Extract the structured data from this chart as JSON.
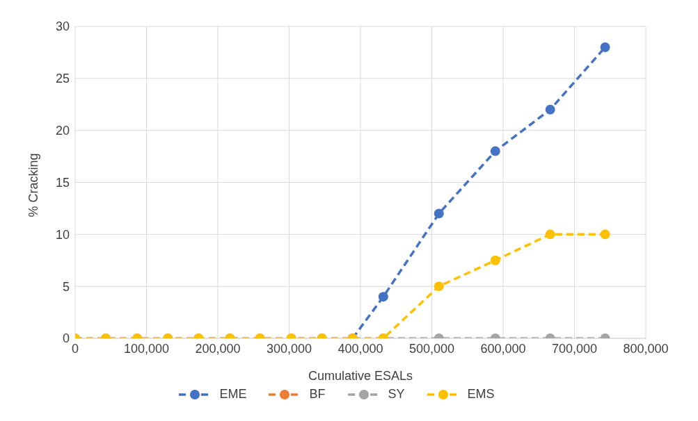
{
  "chart_data": {
    "type": "line",
    "xlabel": "Cumulative ESALs",
    "ylabel": "% Cracking",
    "x": [
      0,
      43000,
      87000,
      130000,
      173000,
      217000,
      259000,
      303000,
      346000,
      389000,
      432000,
      510000,
      589000,
      666000,
      743000
    ],
    "series": [
      {
        "name": "EME",
        "color": "#4472c4",
        "values": [
          null,
          null,
          null,
          null,
          null,
          null,
          null,
          null,
          null,
          0,
          4,
          12,
          18,
          22,
          28
        ]
      },
      {
        "name": "BF",
        "color": "#ed7d31",
        "values": [
          null,
          null,
          null,
          null,
          null,
          null,
          null,
          null,
          null,
          null,
          null,
          null,
          null,
          null,
          null
        ]
      },
      {
        "name": "SY",
        "color": "#a5a5a5",
        "values": [
          0,
          0,
          0,
          0,
          0,
          0,
          0,
          0,
          0,
          0,
          0,
          0,
          0,
          0,
          0
        ]
      },
      {
        "name": "EMS",
        "color": "#ffc000",
        "values": [
          0,
          0,
          0,
          0,
          0,
          0,
          0,
          0,
          0,
          0,
          0,
          5,
          7.5,
          10,
          10
        ]
      }
    ],
    "xlim": [
      0,
      800000
    ],
    "xticks": [
      {
        "value": 0,
        "label": "0"
      },
      {
        "value": 100000,
        "label": "100,000"
      },
      {
        "value": 200000,
        "label": "200,000"
      },
      {
        "value": 300000,
        "label": "300,000"
      },
      {
        "value": 400000,
        "label": "400,000"
      },
      {
        "value": 500000,
        "label": "500,000"
      },
      {
        "value": 600000,
        "label": "600,000"
      },
      {
        "value": 700000,
        "label": "700,000"
      },
      {
        "value": 800000,
        "label": "800,000"
      }
    ],
    "ylim": [
      0,
      30
    ],
    "yticks": [
      0,
      5,
      10,
      15,
      20,
      25,
      30
    ],
    "grid": true,
    "legend": "bottom",
    "marker": "circle",
    "line_style": "dashed"
  }
}
